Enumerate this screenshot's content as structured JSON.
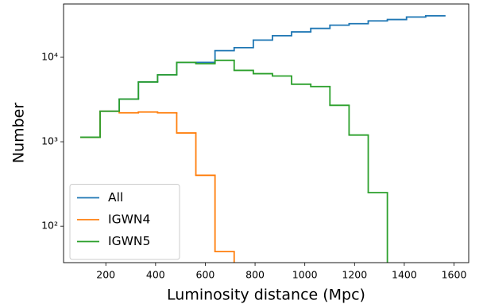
{
  "chart_data": {
    "type": "step-histogram",
    "xlabel": "Luminosity distance (Mpc)",
    "ylabel": "Number",
    "bins": [
      100,
      177,
      254,
      331,
      408,
      485,
      562,
      639,
      716,
      793,
      870,
      947,
      1024,
      1101,
      1178,
      1255,
      1332,
      1409,
      1486,
      1563
    ],
    "series": [
      {
        "name": "All",
        "color": "#1f77b4",
        "values": [
          1130,
          2300,
          3200,
          5100,
          6200,
          8700,
          8700,
          12000,
          13000,
          16000,
          18000,
          20000,
          22000,
          24000,
          25000,
          27000,
          28000,
          30000,
          31000
        ]
      },
      {
        "name": "IGWN4",
        "color": "#ff7f0e",
        "values": [
          1130,
          2300,
          2200,
          2250,
          2200,
          1270,
          400,
          50,
          0,
          0,
          0,
          0,
          0,
          0,
          0,
          0,
          0,
          0,
          0
        ]
      },
      {
        "name": "IGWN5",
        "color": "#2ca02c",
        "values": [
          1130,
          2300,
          3200,
          5100,
          6200,
          8700,
          8400,
          9200,
          7000,
          6400,
          6000,
          4800,
          4500,
          2700,
          1200,
          250,
          0,
          0,
          0
        ]
      }
    ],
    "xlim": [
      30,
      1659
    ],
    "ylim": [
      37,
      42800
    ],
    "log_y": true,
    "xticks": [
      200,
      400,
      600,
      800,
      1000,
      1200,
      1400,
      1600
    ],
    "yticks": [
      {
        "value": 100,
        "label": "10²"
      },
      {
        "value": 1000,
        "label": "10³"
      },
      {
        "value": 10000,
        "label": "10⁴"
      }
    ],
    "legend": "lower left"
  }
}
